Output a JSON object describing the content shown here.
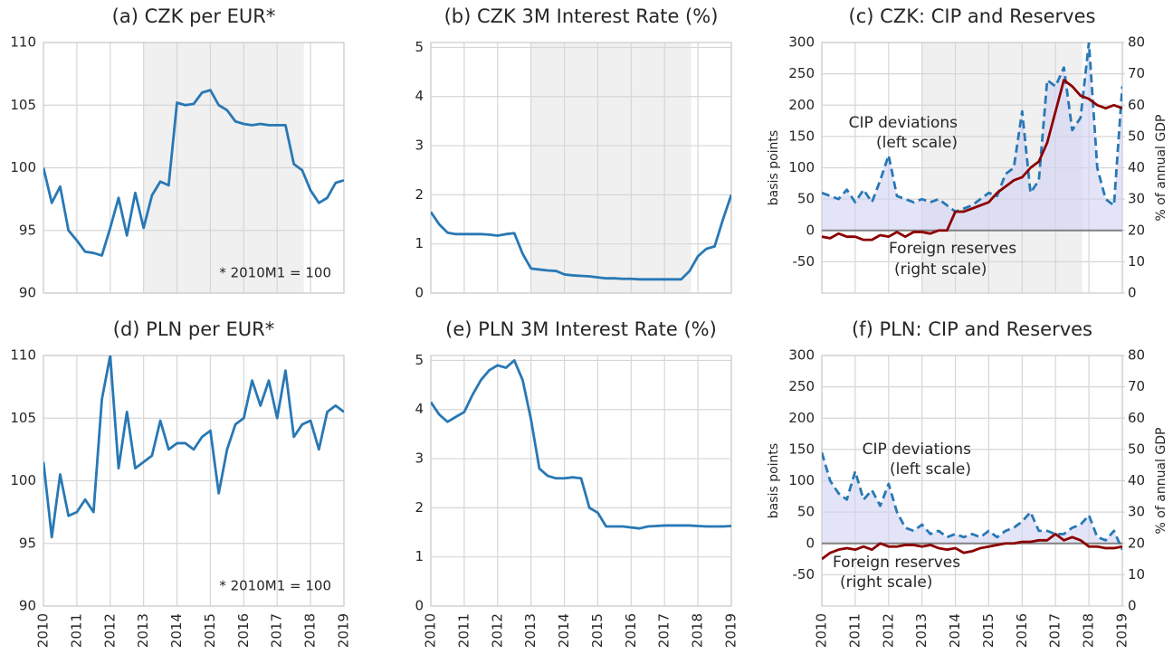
{
  "chart_data": [
    {
      "type": "line",
      "title": "(a) CZK per EUR*",
      "note": "* 2010M1 = 100",
      "x": [
        2010,
        2010.25,
        2010.5,
        2010.75,
        2011,
        2011.25,
        2011.5,
        2011.75,
        2012,
        2012.25,
        2012.5,
        2012.75,
        2013,
        2013.25,
        2013.5,
        2013.75,
        2014,
        2014.25,
        2014.5,
        2014.75,
        2015,
        2015.25,
        2015.5,
        2015.75,
        2016,
        2016.25,
        2016.5,
        2016.75,
        2017,
        2017.25,
        2017.5,
        2017.75,
        2018,
        2018.25,
        2018.5,
        2018.75,
        2019
      ],
      "xlim": [
        2010,
        2019
      ],
      "xticks": [
        2010,
        2011,
        2012,
        2013,
        2014,
        2015,
        2016,
        2017,
        2018,
        2019
      ],
      "show_xtick_labels": false,
      "ylim": [
        90,
        110
      ],
      "yticks": [
        90,
        95,
        100,
        105,
        110
      ],
      "shade": [
        2013,
        2017.8
      ],
      "series": [
        {
          "color": "#2878b5",
          "values": [
            100,
            97.2,
            98.5,
            95,
            94.2,
            93.3,
            93.2,
            93,
            95.2,
            97.6,
            94.6,
            98,
            95.2,
            97.8,
            98.9,
            98.6,
            105.2,
            105,
            105.1,
            106,
            106.2,
            105,
            104.6,
            103.7,
            103.5,
            103.4,
            103.5,
            103.4,
            103.4,
            103.4,
            100.3,
            99.8,
            98.2,
            97.2,
            97.6,
            98.8,
            99
          ]
        }
      ]
    },
    {
      "type": "line",
      "title": "(b) CZK 3M Interest Rate (%)",
      "x": [
        2010,
        2010.25,
        2010.5,
        2010.75,
        2011,
        2011.25,
        2011.5,
        2011.75,
        2012,
        2012.25,
        2012.5,
        2012.75,
        2013,
        2013.25,
        2013.5,
        2013.75,
        2014,
        2014.25,
        2014.5,
        2014.75,
        2015,
        2015.25,
        2015.5,
        2015.75,
        2016,
        2016.25,
        2016.5,
        2016.75,
        2017,
        2017.25,
        2017.5,
        2017.75,
        2018,
        2018.25,
        2018.5,
        2018.75,
        2019
      ],
      "xlim": [
        2010,
        2019
      ],
      "xticks": [
        2010,
        2011,
        2012,
        2013,
        2014,
        2015,
        2016,
        2017,
        2018,
        2019
      ],
      "show_xtick_labels": false,
      "ylim": [
        0,
        5.1
      ],
      "yticks": [
        0,
        1,
        2,
        3,
        4,
        5
      ],
      "shade": [
        2013,
        2017.8
      ],
      "series": [
        {
          "color": "#2878b5",
          "values": [
            1.65,
            1.4,
            1.23,
            1.2,
            1.2,
            1.2,
            1.2,
            1.19,
            1.17,
            1.2,
            1.22,
            0.8,
            0.5,
            0.48,
            0.46,
            0.45,
            0.38,
            0.36,
            0.35,
            0.34,
            0.32,
            0.3,
            0.3,
            0.29,
            0.29,
            0.28,
            0.28,
            0.28,
            0.28,
            0.28,
            0.28,
            0.45,
            0.75,
            0.9,
            0.95,
            1.5,
            2.0
          ]
        }
      ]
    },
    {
      "type": "line",
      "title": "(c) CZK: CIP and Reserves",
      "ylabel": "basis points",
      "y2label": "% of annual GDP",
      "x": [
        2010,
        2010.25,
        2010.5,
        2010.75,
        2011,
        2011.25,
        2011.5,
        2011.75,
        2012,
        2012.25,
        2012.5,
        2012.75,
        2013,
        2013.25,
        2013.5,
        2013.75,
        2014,
        2014.25,
        2014.5,
        2014.75,
        2015,
        2015.25,
        2015.5,
        2015.75,
        2016,
        2016.25,
        2016.5,
        2016.75,
        2017,
        2017.25,
        2017.5,
        2017.75,
        2018,
        2018.25,
        2018.5,
        2018.75,
        2019
      ],
      "xlim": [
        2010,
        2019
      ],
      "xticks": [
        2010,
        2011,
        2012,
        2013,
        2014,
        2015,
        2016,
        2017,
        2018,
        2019
      ],
      "show_xtick_labels": false,
      "ylim": [
        -100,
        300
      ],
      "yticks": [
        -50,
        0,
        50,
        100,
        150,
        200,
        250,
        300
      ],
      "y2lim": [
        0,
        80
      ],
      "y2ticks": [
        0,
        10,
        20,
        30,
        40,
        50,
        60,
        70,
        80
      ],
      "shade": [
        2013,
        2017.8
      ],
      "zero_line": true,
      "series": [
        {
          "name": "CIP deviations",
          "note": "(left scale)",
          "color": "#2878b5",
          "dashed": true,
          "fill": "#d2d2f4",
          "values": [
            60,
            55,
            50,
            65,
            45,
            65,
            45,
            80,
            120,
            55,
            50,
            45,
            50,
            45,
            50,
            40,
            30,
            35,
            40,
            50,
            60,
            55,
            90,
            100,
            190,
            60,
            80,
            240,
            230,
            260,
            160,
            180,
            300,
            100,
            50,
            40,
            230
          ]
        },
        {
          "name": "Foreign reserves",
          "note": "(right scale)",
          "color": "#8b0000",
          "axis": "y2",
          "values": [
            18,
            17.5,
            19,
            18,
            18,
            17,
            17,
            18.5,
            18,
            19.5,
            18,
            19.5,
            19.5,
            19,
            20,
            20,
            26,
            26,
            27,
            28,
            29,
            32,
            34,
            36,
            37,
            40,
            42,
            48,
            58,
            68,
            66,
            63,
            62,
            60,
            59,
            60,
            59
          ]
        }
      ]
    },
    {
      "type": "line",
      "title": "(d) PLN per EUR*",
      "note": "* 2010M1 = 100",
      "x": [
        2010,
        2010.25,
        2010.5,
        2010.75,
        2011,
        2011.25,
        2011.5,
        2011.75,
        2012,
        2012.25,
        2012.5,
        2012.75,
        2013,
        2013.25,
        2013.5,
        2013.75,
        2014,
        2014.25,
        2014.5,
        2014.75,
        2015,
        2015.25,
        2015.5,
        2015.75,
        2016,
        2016.25,
        2016.5,
        2016.75,
        2017,
        2017.25,
        2017.5,
        2017.75,
        2018,
        2018.25,
        2018.5,
        2018.75,
        2019
      ],
      "xlim": [
        2010,
        2019
      ],
      "xticks": [
        2010,
        2011,
        2012,
        2013,
        2014,
        2015,
        2016,
        2017,
        2018,
        2019
      ],
      "show_xtick_labels": true,
      "ylim": [
        90,
        110
      ],
      "yticks": [
        90,
        95,
        100,
        105,
        110
      ],
      "series": [
        {
          "color": "#2878b5",
          "values": [
            101.5,
            95.5,
            100.5,
            97.2,
            97.5,
            98.5,
            97.5,
            106.5,
            110,
            101,
            105.5,
            101,
            101.5,
            102,
            104.8,
            102.5,
            103,
            103,
            102.5,
            103.5,
            104,
            99,
            102.5,
            104.5,
            105,
            108,
            106,
            108,
            105,
            108.8,
            103.5,
            104.5,
            104.8,
            102.5,
            105.5,
            106,
            105.5
          ]
        }
      ]
    },
    {
      "type": "line",
      "title": "(e) PLN 3M Interest Rate (%)",
      "x": [
        2010,
        2010.25,
        2010.5,
        2010.75,
        2011,
        2011.25,
        2011.5,
        2011.75,
        2012,
        2012.25,
        2012.5,
        2012.75,
        2013,
        2013.25,
        2013.5,
        2013.75,
        2014,
        2014.25,
        2014.5,
        2014.75,
        2015,
        2015.25,
        2015.5,
        2015.75,
        2016,
        2016.25,
        2016.5,
        2016.75,
        2017,
        2017.25,
        2017.5,
        2017.75,
        2018,
        2018.25,
        2018.5,
        2018.75,
        2019
      ],
      "xlim": [
        2010,
        2019
      ],
      "xticks": [
        2010,
        2011,
        2012,
        2013,
        2014,
        2015,
        2016,
        2017,
        2018,
        2019
      ],
      "show_xtick_labels": true,
      "ylim": [
        0,
        5.1
      ],
      "yticks": [
        0,
        1,
        2,
        3,
        4,
        5
      ],
      "series": [
        {
          "color": "#2878b5",
          "values": [
            4.15,
            3.9,
            3.75,
            3.85,
            3.95,
            4.3,
            4.6,
            4.8,
            4.9,
            4.85,
            5.0,
            4.6,
            3.8,
            2.8,
            2.65,
            2.6,
            2.6,
            2.62,
            2.6,
            2.0,
            1.9,
            1.62,
            1.62,
            1.62,
            1.6,
            1.58,
            1.62,
            1.63,
            1.64,
            1.64,
            1.64,
            1.64,
            1.63,
            1.62,
            1.62,
            1.62,
            1.63
          ]
        }
      ]
    },
    {
      "type": "line",
      "title": "(f) PLN: CIP and Reserves",
      "ylabel": "basis points",
      "y2label": "% of annual GDP",
      "x": [
        2010,
        2010.25,
        2010.5,
        2010.75,
        2011,
        2011.25,
        2011.5,
        2011.75,
        2012,
        2012.25,
        2012.5,
        2012.75,
        2013,
        2013.25,
        2013.5,
        2013.75,
        2014,
        2014.25,
        2014.5,
        2014.75,
        2015,
        2015.25,
        2015.5,
        2015.75,
        2016,
        2016.25,
        2016.5,
        2016.75,
        2017,
        2017.25,
        2017.5,
        2017.75,
        2018,
        2018.25,
        2018.5,
        2018.75,
        2019
      ],
      "xlim": [
        2010,
        2019
      ],
      "xticks": [
        2010,
        2011,
        2012,
        2013,
        2014,
        2015,
        2016,
        2017,
        2018,
        2019
      ],
      "show_xtick_labels": true,
      "ylim": [
        -100,
        300
      ],
      "yticks": [
        -50,
        0,
        50,
        100,
        150,
        200,
        250,
        300
      ],
      "y2lim": [
        0,
        80
      ],
      "y2ticks": [
        0,
        10,
        20,
        30,
        40,
        50,
        60,
        70,
        80
      ],
      "zero_line": true,
      "series": [
        {
          "name": "CIP deviations",
          "note": "(left scale)",
          "color": "#2878b5",
          "dashed": true,
          "fill": "#d2d2f4",
          "values": [
            145,
            100,
            80,
            70,
            115,
            70,
            85,
            60,
            95,
            50,
            25,
            20,
            30,
            15,
            20,
            10,
            15,
            10,
            15,
            10,
            20,
            10,
            20,
            25,
            35,
            50,
            20,
            20,
            15,
            15,
            25,
            30,
            45,
            10,
            5,
            20,
            -10
          ]
        },
        {
          "name": "Foreign reserves",
          "note": "(right scale)",
          "color": "#8b0000",
          "axis": "y2",
          "values": [
            15,
            17,
            18,
            18.5,
            18,
            19,
            18,
            20,
            19,
            19,
            19.5,
            19.5,
            19,
            19.5,
            18.5,
            18,
            18.5,
            17,
            17.5,
            18.5,
            19,
            19.5,
            20,
            20,
            20.5,
            20.5,
            21,
            21,
            23,
            21,
            22,
            21,
            19,
            19,
            18.5,
            18.5,
            19
          ]
        }
      ]
    }
  ]
}
